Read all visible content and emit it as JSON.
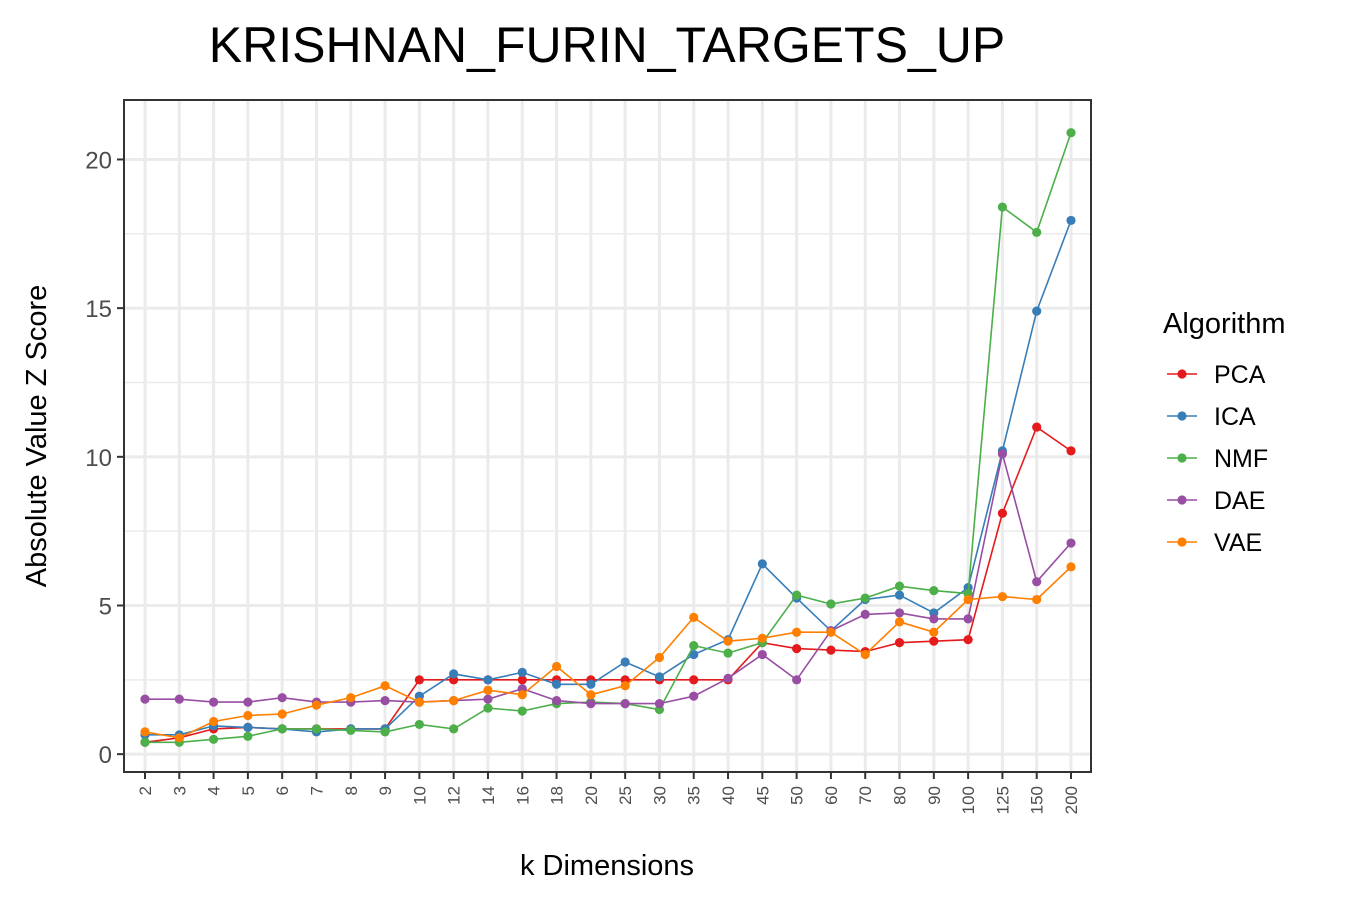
{
  "chart_data": {
    "type": "line",
    "title": "KRISHNAN_FURIN_TARGETS_UP",
    "xlabel": "k Dimensions",
    "ylabel": "Absolute Value Z Score",
    "categories": [
      "2",
      "3",
      "4",
      "5",
      "6",
      "7",
      "8",
      "9",
      "10",
      "12",
      "14",
      "16",
      "18",
      "20",
      "25",
      "30",
      "35",
      "40",
      "45",
      "50",
      "60",
      "70",
      "80",
      "90",
      "100",
      "125",
      "150",
      "200"
    ],
    "ylim": [
      -0.6,
      22.0
    ],
    "yticks": [
      0,
      5,
      10,
      15,
      20
    ],
    "grid": true,
    "legend": {
      "title": "Algorithm",
      "position": "right"
    },
    "series": [
      {
        "name": "PCA",
        "color": "#E41A1C",
        "values": [
          0.4,
          0.55,
          0.85,
          0.9,
          0.85,
          0.85,
          0.85,
          0.85,
          2.5,
          2.5,
          2.5,
          2.5,
          2.5,
          2.5,
          2.5,
          2.5,
          2.5,
          2.5,
          3.75,
          3.55,
          3.5,
          3.45,
          3.75,
          3.8,
          3.85,
          8.1,
          11.0,
          10.2
        ]
      },
      {
        "name": "ICA",
        "color": "#377EB8",
        "values": [
          0.65,
          0.65,
          0.95,
          0.9,
          0.85,
          0.75,
          0.85,
          0.85,
          1.95,
          2.7,
          2.5,
          2.75,
          2.35,
          2.35,
          3.1,
          2.6,
          3.35,
          3.85,
          6.4,
          5.25,
          4.15,
          5.2,
          5.35,
          4.75,
          5.6,
          10.2,
          14.9,
          17.95
        ]
      },
      {
        "name": "NMF",
        "color": "#4DAF4A",
        "values": [
          0.4,
          0.4,
          0.5,
          0.6,
          0.85,
          0.85,
          0.8,
          0.75,
          1.0,
          0.85,
          1.55,
          1.45,
          1.7,
          1.75,
          1.7,
          1.5,
          3.65,
          3.4,
          3.75,
          5.35,
          5.05,
          5.25,
          5.65,
          5.5,
          5.4,
          18.4,
          17.55,
          20.9
        ]
      },
      {
        "name": "DAE",
        "color": "#984EA3",
        "values": [
          1.85,
          1.85,
          1.75,
          1.75,
          1.9,
          1.75,
          1.75,
          1.8,
          1.75,
          1.8,
          1.85,
          2.2,
          1.8,
          1.7,
          1.7,
          1.7,
          1.95,
          2.55,
          3.35,
          2.5,
          4.15,
          4.7,
          4.75,
          4.55,
          4.55,
          10.1,
          5.8,
          7.1
        ]
      },
      {
        "name": "VAE",
        "color": "#FF7F00",
        "values": [
          0.75,
          0.55,
          1.1,
          1.3,
          1.35,
          1.65,
          1.9,
          2.3,
          1.75,
          1.8,
          2.15,
          2.0,
          2.95,
          2.0,
          2.3,
          3.25,
          4.6,
          3.8,
          3.9,
          4.1,
          4.1,
          3.35,
          4.45,
          4.1,
          5.2,
          5.3,
          5.2,
          6.3
        ]
      }
    ]
  }
}
